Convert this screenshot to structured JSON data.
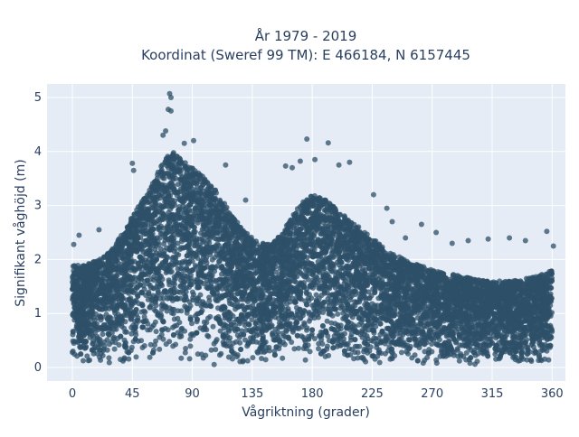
{
  "chart_data": {
    "type": "scatter",
    "title": [
      "År 1979 - 2019",
      "Koordinat (Sweref 99 TM): E 466184, N 6157445"
    ],
    "xlabel": "Vågriktning (grader)",
    "ylabel": "Signifikant våghöjd (m)",
    "xlim": [
      -19,
      370
    ],
    "ylim": [
      -0.25,
      5.25
    ],
    "x_ticks": [
      0,
      45,
      90,
      135,
      180,
      225,
      270,
      315,
      360
    ],
    "y_ticks": [
      0,
      1,
      2,
      3,
      4,
      5
    ],
    "grid": true,
    "legend": "none",
    "colors": {
      "marker": "#2e5068",
      "plot_background": "#e5ecf6",
      "grid": "#ffffff",
      "text": "#2a3f5f"
    },
    "envelope": {
      "description_direction_deg": [
        0,
        10,
        20,
        30,
        40,
        50,
        60,
        70,
        75,
        80,
        90,
        100,
        110,
        120,
        130,
        140,
        150,
        160,
        170,
        180,
        190,
        200,
        210,
        220,
        230,
        240,
        250,
        260,
        270,
        280,
        290,
        300,
        310,
        320,
        330,
        340,
        350,
        360
      ],
      "upper_height_m": [
        1.9,
        1.9,
        2.0,
        2.2,
        2.6,
        3.0,
        3.4,
        3.9,
        4.0,
        3.9,
        3.7,
        3.5,
        3.2,
        2.8,
        2.5,
        2.3,
        2.3,
        2.6,
        3.0,
        3.2,
        3.1,
        2.9,
        2.7,
        2.5,
        2.3,
        2.1,
        2.0,
        1.9,
        1.8,
        1.75,
        1.7,
        1.65,
        1.6,
        1.6,
        1.6,
        1.65,
        1.7,
        1.8
      ]
    },
    "outliers": [
      {
        "x": 73,
        "y": 5.07
      },
      {
        "x": 74,
        "y": 5.0
      },
      {
        "x": 72,
        "y": 4.78
      },
      {
        "x": 74,
        "y": 4.75
      },
      {
        "x": 70,
        "y": 4.38
      },
      {
        "x": 68,
        "y": 4.3
      },
      {
        "x": 91,
        "y": 4.2
      },
      {
        "x": 84,
        "y": 4.15
      },
      {
        "x": 176,
        "y": 4.23
      },
      {
        "x": 192,
        "y": 4.16
      },
      {
        "x": 182,
        "y": 3.85
      },
      {
        "x": 200,
        "y": 3.75
      },
      {
        "x": 171,
        "y": 3.82
      },
      {
        "x": 165,
        "y": 3.7
      },
      {
        "x": 208,
        "y": 3.8
      },
      {
        "x": 160,
        "y": 3.73
      },
      {
        "x": 115,
        "y": 3.75
      },
      {
        "x": 240,
        "y": 2.7
      },
      {
        "x": 262,
        "y": 2.65
      },
      {
        "x": 273,
        "y": 2.5
      },
      {
        "x": 297,
        "y": 2.35
      },
      {
        "x": 312,
        "y": 2.38
      },
      {
        "x": 328,
        "y": 2.4
      },
      {
        "x": 356,
        "y": 2.52
      },
      {
        "x": 361,
        "y": 2.25
      },
      {
        "x": 5,
        "y": 2.45
      },
      {
        "x": 1,
        "y": 2.28
      },
      {
        "x": 45,
        "y": 3.78
      },
      {
        "x": 46,
        "y": 3.65
      },
      {
        "x": 226,
        "y": 3.2
      },
      {
        "x": 236,
        "y": 2.95
      },
      {
        "x": 250,
        "y": 2.4
      },
      {
        "x": 285,
        "y": 2.3
      },
      {
        "x": 340,
        "y": 2.35
      },
      {
        "x": 20,
        "y": 2.55
      },
      {
        "x": 130,
        "y": 3.1
      }
    ]
  }
}
